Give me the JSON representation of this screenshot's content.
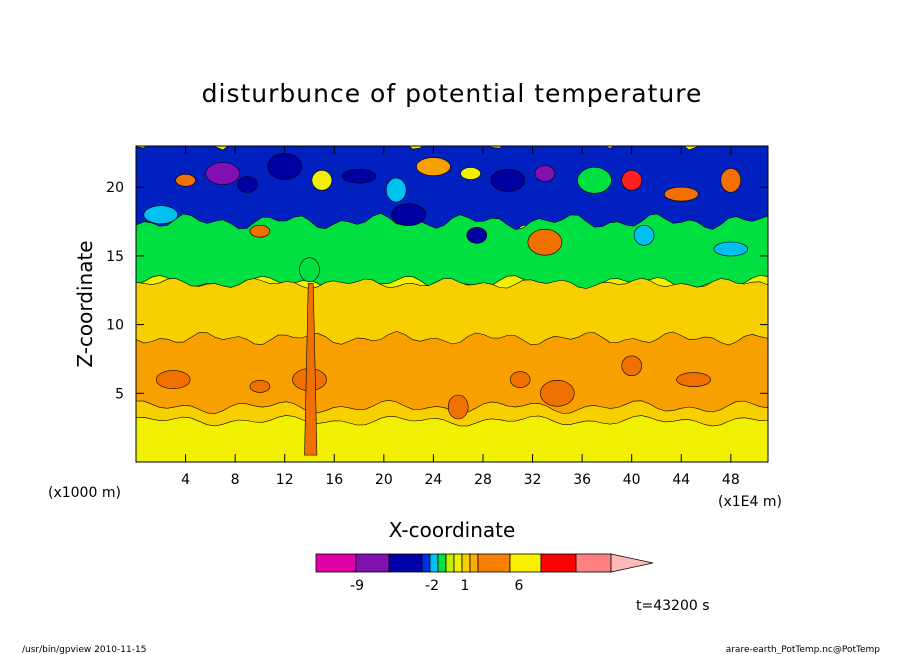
{
  "chart_data": {
    "type": "heatmap",
    "title": "disturbunce of potential temperature",
    "xlabel": "X-coordinate",
    "ylabel": "Z-coordinate",
    "x_unit": "(x1E4 m)",
    "y_unit": "(x1000 m)",
    "xlim": [
      0,
      51
    ],
    "ylim": [
      0,
      23
    ],
    "x_ticks": [
      4,
      8,
      12,
      16,
      20,
      24,
      28,
      32,
      36,
      40,
      44,
      48
    ],
    "y_ticks": [
      5,
      10,
      15,
      20
    ],
    "colorbar": {
      "colors": [
        "#e000a8",
        "#8010b0",
        "#0000a8",
        "#0030e0",
        "#00c0f0",
        "#00e040",
        "#c0f000",
        "#f0f000",
        "#f8d000",
        "#f8b000",
        "#f88000",
        "#f8f000",
        "#ff0000",
        "#ff8080",
        "#ffb8b8"
      ],
      "tick_labels": [
        "-9",
        "-2",
        "1",
        "6"
      ],
      "tick_index": [
        1,
        4,
        7,
        10
      ]
    },
    "time_label": "t=43200 s",
    "field_note_bands": [
      {
        "z_from": 0,
        "z_to": 2,
        "level": "yellow"
      },
      {
        "z_from": 2,
        "z_to": 4,
        "level": "light-orange"
      },
      {
        "z_from": 4,
        "z_to": 9,
        "level": "orange"
      },
      {
        "z_from": 9,
        "z_to": 13,
        "level": "light-orange"
      },
      {
        "z_from": 13,
        "z_to": 16,
        "level": "green"
      },
      {
        "z_from": 16,
        "z_to": 23,
        "level": "blue"
      }
    ]
  },
  "footer": {
    "left": "/usr/bin/gpview   2010-11-15",
    "right": "arare-earth_PotTemp.nc@PotTemp"
  },
  "colors": {
    "yellow": "#f0f000",
    "light_orange": "#f8d000",
    "orange": "#f8a000",
    "deep_orange": "#f07000",
    "green": "#00e040",
    "cyan": "#00c0f0",
    "blue": "#0020c0",
    "navy": "#0000a0",
    "purple": "#8010b0",
    "red": "#ff2020",
    "lime": "#c0f000"
  }
}
